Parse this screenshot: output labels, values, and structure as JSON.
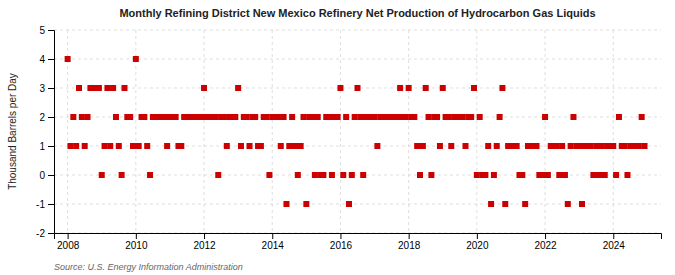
{
  "chart_data": {
    "type": "scatter",
    "title": "Monthly Refining District New Mexico Refinery Net Production of Hydrocarbon Gas Liquids",
    "y_label": "Thousand Barrels per Day",
    "source": "Source: U.S. Energy Information Administration",
    "color": "#cc0000",
    "marker": "square",
    "grid": true,
    "xlim": [
      2007.6,
      2025.4
    ],
    "xticks": [
      2008,
      2010,
      2012,
      2014,
      2016,
      2018,
      2020,
      2022,
      2024
    ],
    "ylim": [
      -2,
      5
    ],
    "yticks": [
      -2,
      -1,
      0,
      1,
      2,
      3,
      4,
      5
    ],
    "x": [
      2008.0,
      2008.083,
      2008.167,
      2008.25,
      2008.333,
      2008.417,
      2008.5,
      2008.583,
      2008.667,
      2008.75,
      2008.833,
      2008.917,
      2009.0,
      2009.083,
      2009.167,
      2009.25,
      2009.333,
      2009.417,
      2009.5,
      2009.583,
      2009.667,
      2009.75,
      2009.833,
      2009.917,
      2010.0,
      2010.083,
      2010.167,
      2010.25,
      2010.333,
      2010.417,
      2010.5,
      2010.583,
      2010.667,
      2010.75,
      2010.833,
      2010.917,
      2011.0,
      2011.083,
      2011.167,
      2011.25,
      2011.333,
      2011.417,
      2011.5,
      2011.583,
      2011.667,
      2011.75,
      2011.833,
      2011.917,
      2012.0,
      2012.083,
      2012.167,
      2012.25,
      2012.333,
      2012.417,
      2012.5,
      2012.583,
      2012.667,
      2012.75,
      2012.833,
      2012.917,
      2013.0,
      2013.083,
      2013.167,
      2013.25,
      2013.333,
      2013.417,
      2013.5,
      2013.583,
      2013.667,
      2013.75,
      2013.833,
      2013.917,
      2014.0,
      2014.083,
      2014.167,
      2014.25,
      2014.333,
      2014.417,
      2014.5,
      2014.583,
      2014.667,
      2014.75,
      2014.833,
      2014.917,
      2015.0,
      2015.083,
      2015.167,
      2015.25,
      2015.333,
      2015.417,
      2015.5,
      2015.583,
      2015.667,
      2015.75,
      2015.833,
      2015.917,
      2016.0,
      2016.083,
      2016.167,
      2016.25,
      2016.333,
      2016.417,
      2016.5,
      2016.583,
      2016.667,
      2016.75,
      2016.833,
      2016.917,
      2017.0,
      2017.083,
      2017.167,
      2017.25,
      2017.333,
      2017.417,
      2017.5,
      2017.583,
      2017.667,
      2017.75,
      2017.833,
      2017.917,
      2018.0,
      2018.083,
      2018.167,
      2018.25,
      2018.333,
      2018.417,
      2018.5,
      2018.583,
      2018.667,
      2018.75,
      2018.833,
      2018.917,
      2019.0,
      2019.083,
      2019.167,
      2019.25,
      2019.333,
      2019.417,
      2019.5,
      2019.583,
      2019.667,
      2019.75,
      2019.833,
      2019.917,
      2020.0,
      2020.083,
      2020.167,
      2020.25,
      2020.333,
      2020.417,
      2020.5,
      2020.583,
      2020.667,
      2020.75,
      2020.833,
      2020.917,
      2021.0,
      2021.083,
      2021.167,
      2021.25,
      2021.333,
      2021.417,
      2021.5,
      2021.583,
      2021.667,
      2021.75,
      2021.833,
      2021.917,
      2022.0,
      2022.083,
      2022.167,
      2022.25,
      2022.333,
      2022.417,
      2022.5,
      2022.583,
      2022.667,
      2022.75,
      2022.833,
      2022.917,
      2023.0,
      2023.083,
      2023.167,
      2023.25,
      2023.333,
      2023.417,
      2023.5,
      2023.583,
      2023.667,
      2023.75,
      2023.833,
      2023.917,
      2024.0,
      2024.083,
      2024.167,
      2024.25,
      2024.333,
      2024.417,
      2024.5,
      2024.583,
      2024.667,
      2024.75,
      2024.833,
      2024.917
    ],
    "values": [
      4,
      1,
      2,
      1,
      3,
      2,
      1,
      2,
      3,
      3,
      3,
      3,
      0,
      1,
      3,
      1,
      3,
      2,
      1,
      0,
      3,
      2,
      2,
      1,
      4,
      1,
      2,
      2,
      1,
      0,
      2,
      2,
      2,
      2,
      2,
      1,
      2,
      2,
      2,
      1,
      1,
      2,
      2,
      2,
      2,
      2,
      2,
      2,
      3,
      2,
      2,
      2,
      2,
      0,
      2,
      2,
      1,
      2,
      2,
      2,
      3,
      1,
      2,
      2,
      1,
      2,
      2,
      1,
      1,
      2,
      2,
      0,
      2,
      2,
      2,
      1,
      2,
      -1,
      1,
      2,
      1,
      0,
      1,
      2,
      -1,
      2,
      2,
      0,
      2,
      0,
      0,
      2,
      2,
      0,
      2,
      2,
      3,
      0,
      2,
      -1,
      0,
      2,
      3,
      2,
      0,
      2,
      2,
      2,
      2,
      1,
      2,
      2,
      2,
      2,
      2,
      2,
      2,
      3,
      2,
      2,
      3,
      2,
      2,
      1,
      0,
      1,
      3,
      2,
      0,
      2,
      2,
      1,
      3,
      2,
      2,
      1,
      2,
      2,
      2,
      2,
      1,
      2,
      2,
      3,
      0,
      2,
      0,
      0,
      1,
      -1,
      0,
      1,
      2,
      3,
      -1,
      1,
      1,
      1,
      1,
      0,
      0,
      -1,
      1,
      1,
      1,
      1,
      0,
      0,
      2,
      0,
      1,
      1,
      1,
      0,
      1,
      0,
      -1,
      1,
      2,
      1,
      1,
      -1,
      1,
      1,
      1,
      0,
      1,
      0,
      1,
      0,
      1,
      1,
      1,
      0,
      2,
      1,
      1,
      0,
      1,
      1,
      1,
      1,
      2,
      1
    ]
  }
}
